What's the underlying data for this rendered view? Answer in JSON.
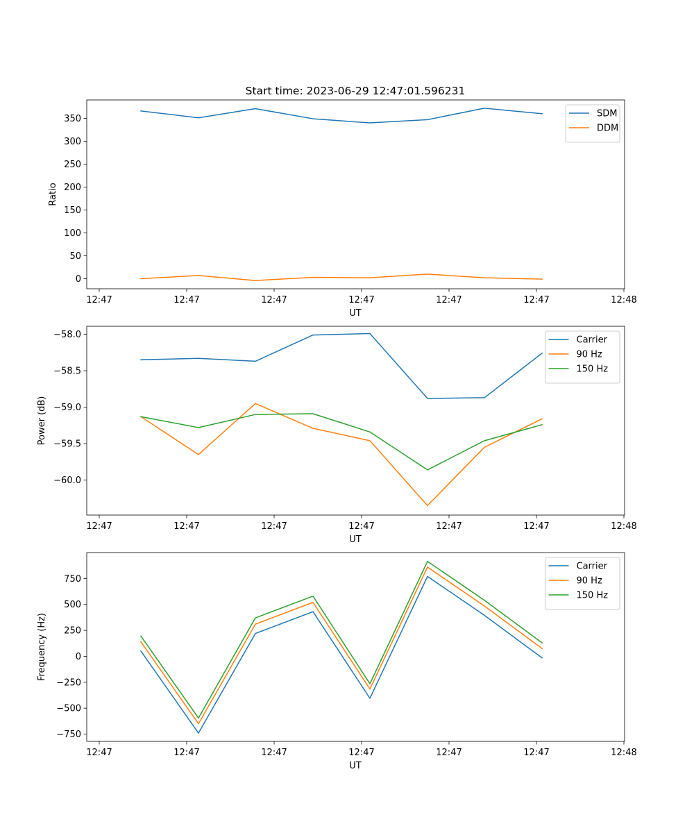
{
  "figure": {
    "title": "Start time: 2023-06-29 12:47:01.596231"
  },
  "chart_data": [
    {
      "type": "line",
      "title": "Start time: 2023-06-29 12:47:01.596231",
      "xlabel": "UT",
      "ylabel": "Ratio",
      "x_tick_labels": [
        "12:47",
        "12:47",
        "12:47",
        "12:47",
        "12:47",
        "12:47",
        "12:48"
      ],
      "y_ticks": [
        0,
        50,
        100,
        150,
        200,
        250,
        300,
        350
      ],
      "ylim": [
        -22,
        390
      ],
      "legend_position": "upper right",
      "grid": false,
      "series": [
        {
          "name": "SDM",
          "color": "#1f77b4",
          "values": [
            366,
            351,
            371,
            349,
            340,
            347,
            372,
            360
          ]
        },
        {
          "name": "DDM",
          "color": "#ff7f0e",
          "values": [
            0,
            7,
            -4,
            3,
            2,
            10,
            2,
            -1
          ]
        }
      ]
    },
    {
      "type": "line",
      "title": "",
      "xlabel": "UT",
      "ylabel": "Power (dB)",
      "x_tick_labels": [
        "12:47",
        "12:47",
        "12:47",
        "12:47",
        "12:47",
        "12:47",
        "12:48"
      ],
      "y_ticks": [
        -60.0,
        -59.5,
        -59.0,
        -58.5,
        -58.0
      ],
      "y_tick_labels": [
        "−60.0",
        "−59.5",
        "−59.0",
        "−58.5",
        "−58.0"
      ],
      "ylim": [
        -60.48,
        -57.89
      ],
      "legend_position": "upper right",
      "grid": false,
      "series": [
        {
          "name": "Carrier",
          "color": "#1f77b4",
          "values": [
            -58.35,
            -58.33,
            -58.37,
            -58.01,
            -57.99,
            -58.88,
            -58.87,
            -58.26
          ]
        },
        {
          "name": "90 Hz",
          "color": "#ff7f0e",
          "values": [
            -59.13,
            -59.65,
            -58.95,
            -59.29,
            -59.46,
            -60.35,
            -59.55,
            -59.16
          ]
        },
        {
          "name": "150 Hz",
          "color": "#2ca02c",
          "values": [
            -59.13,
            -59.28,
            -59.1,
            -59.09,
            -59.34,
            -59.86,
            -59.46,
            -59.24
          ]
        }
      ]
    },
    {
      "type": "line",
      "title": "",
      "xlabel": "UT",
      "ylabel": "Frequency (Hz)",
      "x_tick_labels": [
        "12:47",
        "12:47",
        "12:47",
        "12:47",
        "12:47",
        "12:47",
        "12:48"
      ],
      "y_ticks": [
        -750,
        -500,
        -250,
        0,
        250,
        500,
        750
      ],
      "y_tick_labels": [
        "−750",
        "−500",
        "−250",
        "0",
        "250",
        "500",
        "750"
      ],
      "ylim": [
        -820,
        1000
      ],
      "legend_position": "upper right",
      "grid": false,
      "series": [
        {
          "name": "Carrier",
          "color": "#1f77b4",
          "values": [
            50,
            -740,
            220,
            430,
            -405,
            770,
            395,
            -15
          ]
        },
        {
          "name": "90 Hz",
          "color": "#ff7f0e",
          "values": [
            140,
            -650,
            310,
            520,
            -315,
            860,
            485,
            75
          ]
        },
        {
          "name": "150 Hz",
          "color": "#2ca02c",
          "values": [
            195,
            -595,
            370,
            580,
            -265,
            915,
            540,
            130
          ]
        }
      ]
    }
  ]
}
